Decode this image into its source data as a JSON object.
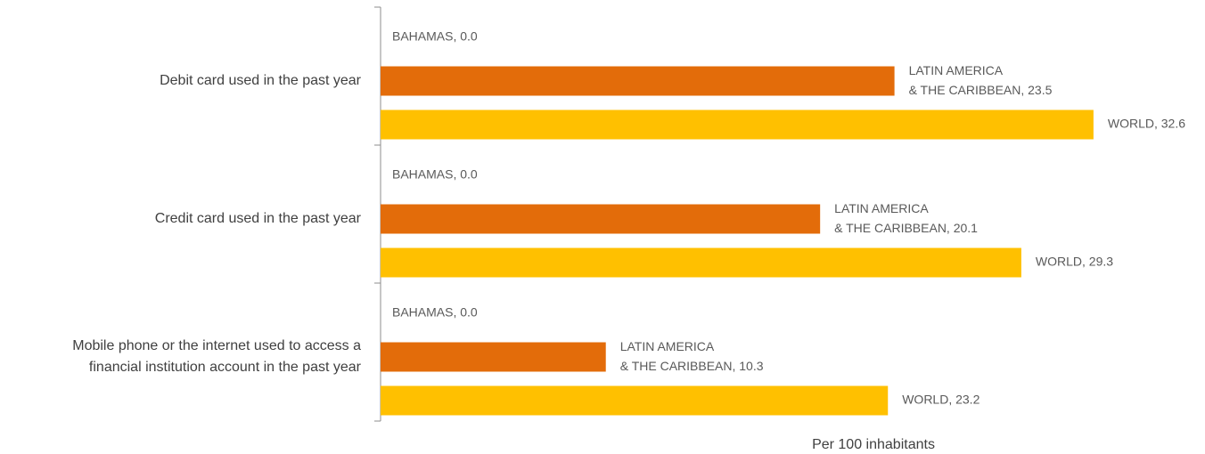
{
  "chart_data": {
    "type": "bar",
    "orientation": "horizontal",
    "categories": [
      "Debit card used in the past year",
      "Credit card used in the past year",
      "Mobile phone or the internet used to access a\nfinancial institution account in the past year"
    ],
    "series": [
      {
        "name": "BAHAMAS",
        "color": "#e36c0a",
        "values": [
          0.0,
          0.0,
          0.0
        ],
        "value_labels": [
          "BAHAMAS, 0.0",
          "BAHAMAS, 0.0",
          "BAHAMAS, 0.0"
        ]
      },
      {
        "name": "LATIN AMERICA & THE CARIBBEAN",
        "color": "#e36c0a",
        "values": [
          23.5,
          20.1,
          10.3
        ],
        "value_labels": [
          "LATIN AMERICA\n& THE CARIBBEAN, 23.5",
          "LATIN AMERICA\n& THE CARIBBEAN, 20.1",
          "LATIN AMERICA\n& THE CARIBBEAN, 10.3"
        ]
      },
      {
        "name": "WORLD",
        "color": "#ffc000",
        "values": [
          32.6,
          29.3,
          23.2
        ],
        "value_labels": [
          "WORLD, 32.6",
          "WORLD, 29.3",
          "WORLD, 23.2"
        ]
      }
    ],
    "xlabel": "Per 100 inhabitants",
    "xlim": [
      0,
      37.7
    ]
  }
}
